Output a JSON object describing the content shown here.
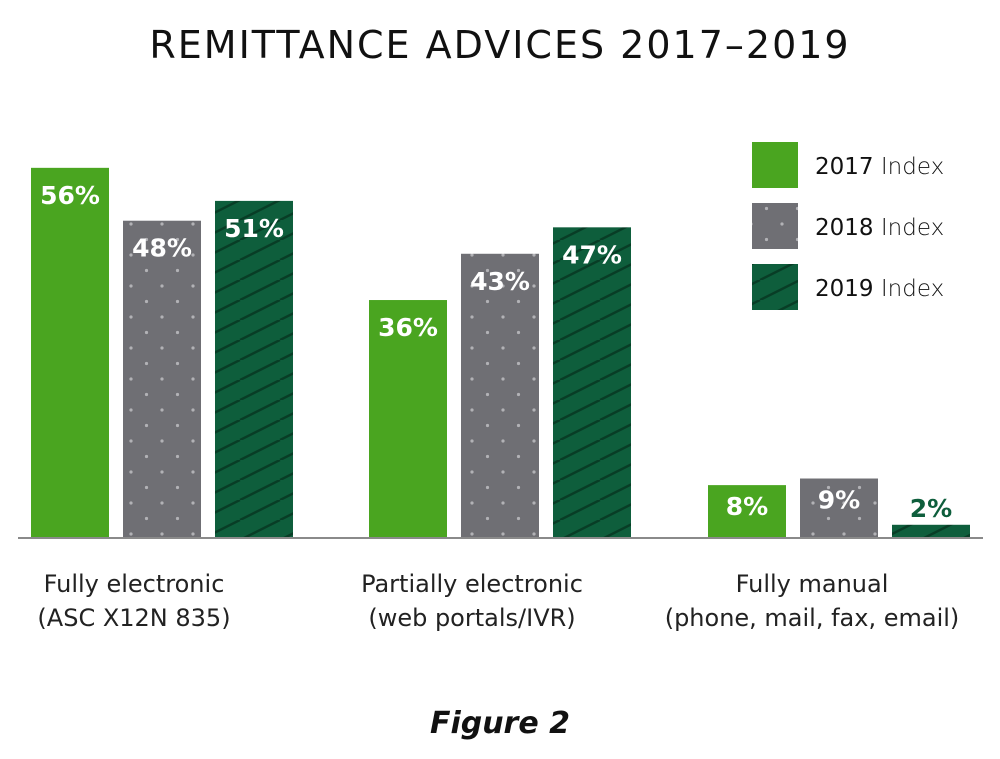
{
  "chart_data": {
    "type": "bar",
    "title": "REMITTANCE ADVICES 2017–2019",
    "categories": [
      [
        "Fully electronic",
        "(ASC X12N 835)"
      ],
      [
        "Partially electronic",
        "(web portals/IVR)"
      ],
      [
        "Fully manual",
        "(phone, mail, fax, email)"
      ]
    ],
    "series": [
      {
        "name": "2017 Index",
        "values": [
          56,
          36,
          8
        ],
        "labels": [
          "56%",
          "36%",
          "8%"
        ],
        "color": "#4aa520",
        "pattern": "solid"
      },
      {
        "name": "2018 Index",
        "values": [
          48,
          43,
          9
        ],
        "labels": [
          "48%",
          "43%",
          "9%"
        ],
        "color": "#6f6f74",
        "pattern": "dots"
      },
      {
        "name": "2019 Index",
        "values": [
          51,
          47,
          2
        ],
        "labels": [
          "51%",
          "47%",
          "2%"
        ],
        "color": "#0e5e3c",
        "pattern": "hatch"
      }
    ],
    "ylim": [
      0,
      60
    ],
    "grid": false,
    "legend": "top-right",
    "caption": "Figure 2"
  }
}
